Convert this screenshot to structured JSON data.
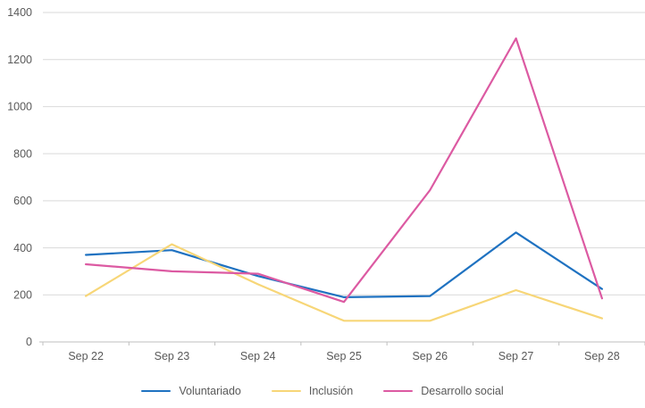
{
  "chart_data": {
    "type": "line",
    "title": "",
    "xlabel": "",
    "ylabel": "",
    "categories": [
      "Sep 22",
      "Sep 23",
      "Sep 24",
      "Sep 25",
      "Sep 26",
      "Sep 27",
      "Sep 28"
    ],
    "series": [
      {
        "name": "Voluntariado",
        "color": "#1F72C1",
        "values": [
          370,
          390,
          280,
          190,
          195,
          465,
          225
        ]
      },
      {
        "name": "Inclusión",
        "color": "#F7D677",
        "values": [
          195,
          415,
          245,
          90,
          90,
          220,
          100
        ]
      },
      {
        "name": "Desarrollo social",
        "color": "#DC5AA2",
        "values": [
          330,
          300,
          290,
          170,
          645,
          1290,
          185
        ]
      }
    ],
    "ylim": [
      0,
      1400
    ],
    "ytick_step": 200,
    "ytick_labels": [
      "0",
      "200",
      "400",
      "600",
      "800",
      "1000",
      "1200",
      "1400"
    ],
    "grid": "horizontal-only",
    "legend_position": "bottom-center"
  },
  "style": {
    "background_color": "#FFFFFF",
    "gridline_color": "#D9D9D9",
    "axis_line_color": "#BFBFBF",
    "tick_color": "#BFBFBF",
    "label_color": "#595959"
  }
}
